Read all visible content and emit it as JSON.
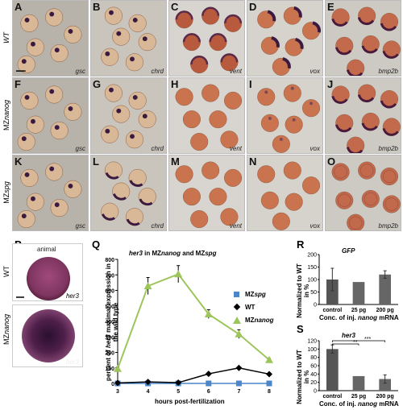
{
  "rows": [
    {
      "label_prefix": "",
      "label_gene": "WT"
    },
    {
      "label_prefix": "MZ",
      "label_gene": "nanog"
    },
    {
      "label_prefix": "MZ",
      "label_gene": "spg"
    }
  ],
  "panels": [
    {
      "letter": "A",
      "probe": "gsc"
    },
    {
      "letter": "B",
      "probe": "chrd"
    },
    {
      "letter": "C",
      "probe": "vent"
    },
    {
      "letter": "D",
      "probe": "vox"
    },
    {
      "letter": "E",
      "probe": "bmp2b"
    },
    {
      "letter": "F",
      "probe": "gsc"
    },
    {
      "letter": "G",
      "probe": "chrd"
    },
    {
      "letter": "H",
      "probe": "vent"
    },
    {
      "letter": "I",
      "probe": "vox"
    },
    {
      "letter": "J",
      "probe": "bmp2b"
    },
    {
      "letter": "K",
      "probe": "gsc"
    },
    {
      "letter": "L",
      "probe": "chrd"
    },
    {
      "letter": "M",
      "probe": "vent"
    },
    {
      "letter": "N",
      "probe": "vox"
    },
    {
      "letter": "O",
      "probe": "bmp2b"
    }
  ],
  "panel_p": {
    "letter": "P",
    "animal_label": "animal",
    "row1_label": "WT",
    "row2_prefix": "MZ",
    "row2_gene": "nanog",
    "probe1": "her3",
    "probe2": "her3"
  },
  "panel_q": {
    "letter": "Q",
    "title_gene": "her3",
    "title_mid": " in MZ",
    "title_g2": "nanog",
    "title_and": " and MZ",
    "title_g3": "spg",
    "ylabel_pre": "percent of ",
    "ylabel_gene": "her3",
    "ylabel_post": " maximal expression in",
    "ylabel_line2": "the wild type",
    "xlabel": "hours post-fertilization",
    "legend": [
      {
        "prefix": "MZ",
        "gene": "spg",
        "color": "#4a86c8",
        "marker": "square"
      },
      {
        "prefix": "",
        "gene": "WT",
        "color": "#000000",
        "marker": "diamond",
        "plain": true
      },
      {
        "prefix": "MZ",
        "gene": "nanog",
        "color": "#9dc55a",
        "marker": "triangle"
      }
    ]
  },
  "panel_r": {
    "letter": "R",
    "title": "GFP",
    "ylabel1": "Normalized to WT",
    "ylabel2": "in %",
    "xlabel_pre": "Conc. of inj. ",
    "xlabel_gene": "nanog",
    "xlabel_post": " mRNA"
  },
  "panel_s": {
    "letter": "S",
    "title": "her3",
    "ylabel1": "Normalized to WT",
    "ylabel2": "in %",
    "xlabel_pre": "Conc. of inj. ",
    "xlabel_gene": "nanog",
    "xlabel_post": " mRNA",
    "sig1": "**",
    "sig2": "***"
  },
  "chart_data": [
    {
      "type": "line",
      "title": "her3 in MZnanog and MZspg",
      "xlabel": "hours post-fertilization",
      "ylabel": "percent of her3 maximal expression in the wild type",
      "x": [
        3,
        4,
        5,
        6,
        7,
        8
      ],
      "xlim": [
        3,
        8
      ],
      "ylim": [
        0,
        800
      ],
      "yticks": [
        0,
        100,
        200,
        300,
        400,
        500,
        600,
        700,
        800
      ],
      "series": [
        {
          "name": "MZspg",
          "values": [
            0,
            0,
            0,
            0,
            0,
            0
          ],
          "errors": [
            0,
            0,
            0,
            0,
            0,
            0
          ]
        },
        {
          "name": "WT",
          "values": [
            3,
            10,
            5,
            62,
            100,
            60
          ],
          "errors": [
            2,
            3,
            3,
            5,
            6,
            4
          ]
        },
        {
          "name": "MZnanog",
          "values": [
            95,
            628,
            705,
            447,
            318,
            152
          ],
          "errors": [
            10,
            55,
            55,
            28,
            28,
            8
          ]
        }
      ],
      "legend": "right"
    },
    {
      "type": "bar",
      "title": "GFP",
      "categories": [
        "control",
        "25 pg",
        "200 pg"
      ],
      "values": [
        100,
        90,
        120
      ],
      "errors": [
        45,
        0,
        15
      ],
      "ylim": [
        0,
        200
      ],
      "yticks": [
        0,
        50,
        100,
        150,
        200
      ],
      "ylabel": "Normalized to WT in %",
      "xlabel": "Conc. of inj. nanog mRNA"
    },
    {
      "type": "bar",
      "title": "her3",
      "categories": [
        "control",
        "25 pg",
        "200 pg"
      ],
      "values": [
        100,
        35,
        28
      ],
      "errors": [
        10,
        0,
        10
      ],
      "ylim": [
        0,
        120
      ],
      "yticks": [
        0,
        20,
        40,
        60,
        80,
        100,
        120
      ],
      "ylabel": "Normalized to WT in %",
      "xlabel": "Conc. of inj. nanog mRNA"
    }
  ]
}
